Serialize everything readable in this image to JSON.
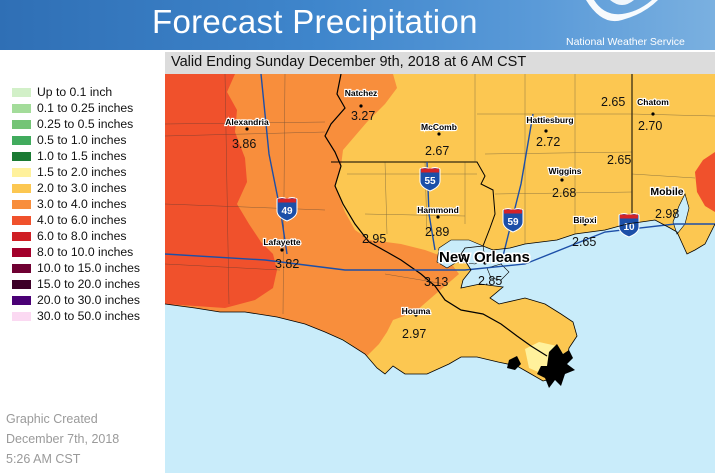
{
  "header": {
    "title": "Forecast Precipitation",
    "agency": "National Weather Service"
  },
  "valid": "Valid Ending Sunday December 9th, 2018 at 6 AM CST",
  "legend": [
    {
      "label": "Up to 0.1 inch",
      "color": "#d2f0c8"
    },
    {
      "label": "0.1 to 0.25 inches",
      "color": "#a3dc9a"
    },
    {
      "label": "0.25 to 0.5 inches",
      "color": "#74c476"
    },
    {
      "label": "0.5 to 1.0 inches",
      "color": "#41ab5d"
    },
    {
      "label": "1.0 to 1.5 inches",
      "color": "#1a7a33"
    },
    {
      "label": "1.5 to 2.0 inches",
      "color": "#fff19c"
    },
    {
      "label": "2.0 to 3.0 inches",
      "color": "#fcc751"
    },
    {
      "label": "3.0 to 4.0 inches",
      "color": "#f88e3c"
    },
    {
      "label": "4.0 to 6.0 inches",
      "color": "#f0512c"
    },
    {
      "label": "6.0 to 8.0 inches",
      "color": "#cf1e24"
    },
    {
      "label": "8.0 to 10.0 inches",
      "color": "#a3002b"
    },
    {
      "label": "10.0 to 15.0 inches",
      "color": "#6f0032"
    },
    {
      "label": "15.0 to 20.0 inches",
      "color": "#3d0028"
    },
    {
      "label": "20.0 to 30.0 inches",
      "color": "#4a0075"
    },
    {
      "label": "30.0 to 50.0 inches",
      "color": "#fbd9f2"
    }
  ],
  "created": {
    "line1": "Graphic Created",
    "line2": "December 7th, 2018",
    "line3": "5:26 AM CST"
  },
  "map": {
    "colors": {
      "water": "#c9ecfa",
      "band_4_6": "#f0512c",
      "band_3_4": "#f88e3c",
      "band_2_3": "#fcc751",
      "band_1_5_2": "#fff19c",
      "land_outline": "#000000",
      "interstate_blue": "#1c4fa8",
      "interstate_red": "#d32228"
    },
    "cities": [
      {
        "name": "Natchez",
        "value": "3.27"
      },
      {
        "name": "Alexandria",
        "value": "3.86"
      },
      {
        "name": "McComb",
        "value": "2.67"
      },
      {
        "name": "Hattiesburg",
        "value": "2.72"
      },
      {
        "name": "Chatom",
        "value": "2.70"
      },
      {
        "name": "Wiggins",
        "value": "2.68"
      },
      {
        "name": "Mobile",
        "value": "2.98"
      },
      {
        "name": "Hammond",
        "value": "2.89"
      },
      {
        "name": "Biloxi",
        "value": "2.65"
      },
      {
        "name": "Lafayette",
        "value": "3.82"
      },
      {
        "name": "New Orleans",
        "value": "2.85"
      },
      {
        "name": "Houma",
        "value": "2.97"
      }
    ],
    "unlabeled_values": [
      "2.65",
      "2.65",
      "2.95",
      "3.13"
    ],
    "interstates": [
      "49",
      "55",
      "59",
      "10"
    ]
  }
}
